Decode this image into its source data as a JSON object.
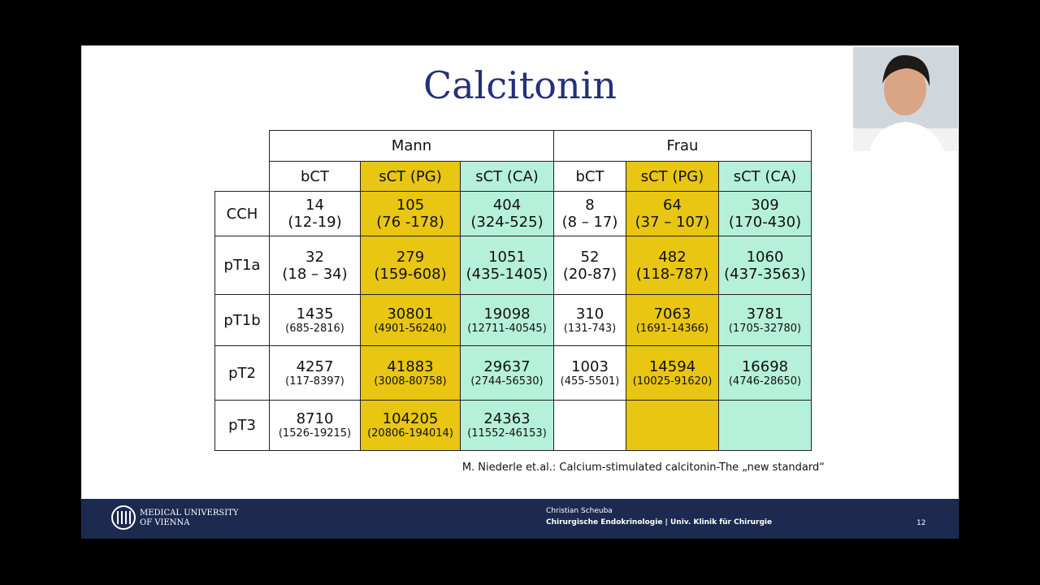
{
  "title": "Calcitonin",
  "table": {
    "groups": [
      "Mann",
      "Frau"
    ],
    "columns": [
      "bCT",
      "sCT (PG)",
      "sCT (CA)",
      "bCT",
      "sCT (PG)",
      "sCT (CA)"
    ],
    "rows": [
      {
        "label": "CCH",
        "cells": [
          {
            "value": "14",
            "range": "(12-19)"
          },
          {
            "value": "105",
            "range": "(76 -178)"
          },
          {
            "value": "404",
            "range": "(324-525)"
          },
          {
            "value": "8",
            "range": "(8 – 17)"
          },
          {
            "value": "64",
            "range": "(37 – 107)"
          },
          {
            "value": "309",
            "range": "(170-430)"
          }
        ]
      },
      {
        "label": "pT1a",
        "cells": [
          {
            "value": "32",
            "range": "(18 – 34)"
          },
          {
            "value": "279",
            "range": "(159-608)"
          },
          {
            "value": "1051",
            "range": "(435-1405)"
          },
          {
            "value": "52",
            "range": "(20-87)"
          },
          {
            "value": "482",
            "range": "(118-787)"
          },
          {
            "value": "1060",
            "range": "(437-3563)"
          }
        ]
      },
      {
        "label": "pT1b",
        "cells": [
          {
            "value": "1435",
            "range": "(685-2816)"
          },
          {
            "value": "30801",
            "range": "(4901-56240)"
          },
          {
            "value": "19098",
            "range": "(12711-40545)"
          },
          {
            "value": "310",
            "range": "(131-743)"
          },
          {
            "value": "7063",
            "range": "(1691-14366)"
          },
          {
            "value": "3781",
            "range": "(1705-32780)"
          }
        ]
      },
      {
        "label": "pT2",
        "cells": [
          {
            "value": "4257",
            "range": "(117-8397)"
          },
          {
            "value": "41883",
            "range": "(3008-80758)"
          },
          {
            "value": "29637",
            "range": "(2744-56530)"
          },
          {
            "value": "1003",
            "range": "(455-5501)"
          },
          {
            "value": "14594",
            "range": "(10025-91620)"
          },
          {
            "value": "16698",
            "range": "(4746-28650)"
          }
        ]
      },
      {
        "label": "pT3",
        "cells": [
          {
            "value": "8710",
            "range": "(1526-19215)"
          },
          {
            "value": "104205",
            "range": "(20806-194014)"
          },
          {
            "value": "24363",
            "range": "(11552-46153)"
          },
          null,
          null,
          null
        ]
      }
    ]
  },
  "citation": "M. Niederle et.al.: Calcium-stimulated calcitonin-The „new standard“",
  "footer": {
    "logo_line1": "MEDICAL UNIVERSITY",
    "logo_line2": "OF VIENNA",
    "author": "Christian Scheuba",
    "department": "Chirurgische Endokrinologie | Univ. Klinik für Chirurgie",
    "page": "12"
  }
}
